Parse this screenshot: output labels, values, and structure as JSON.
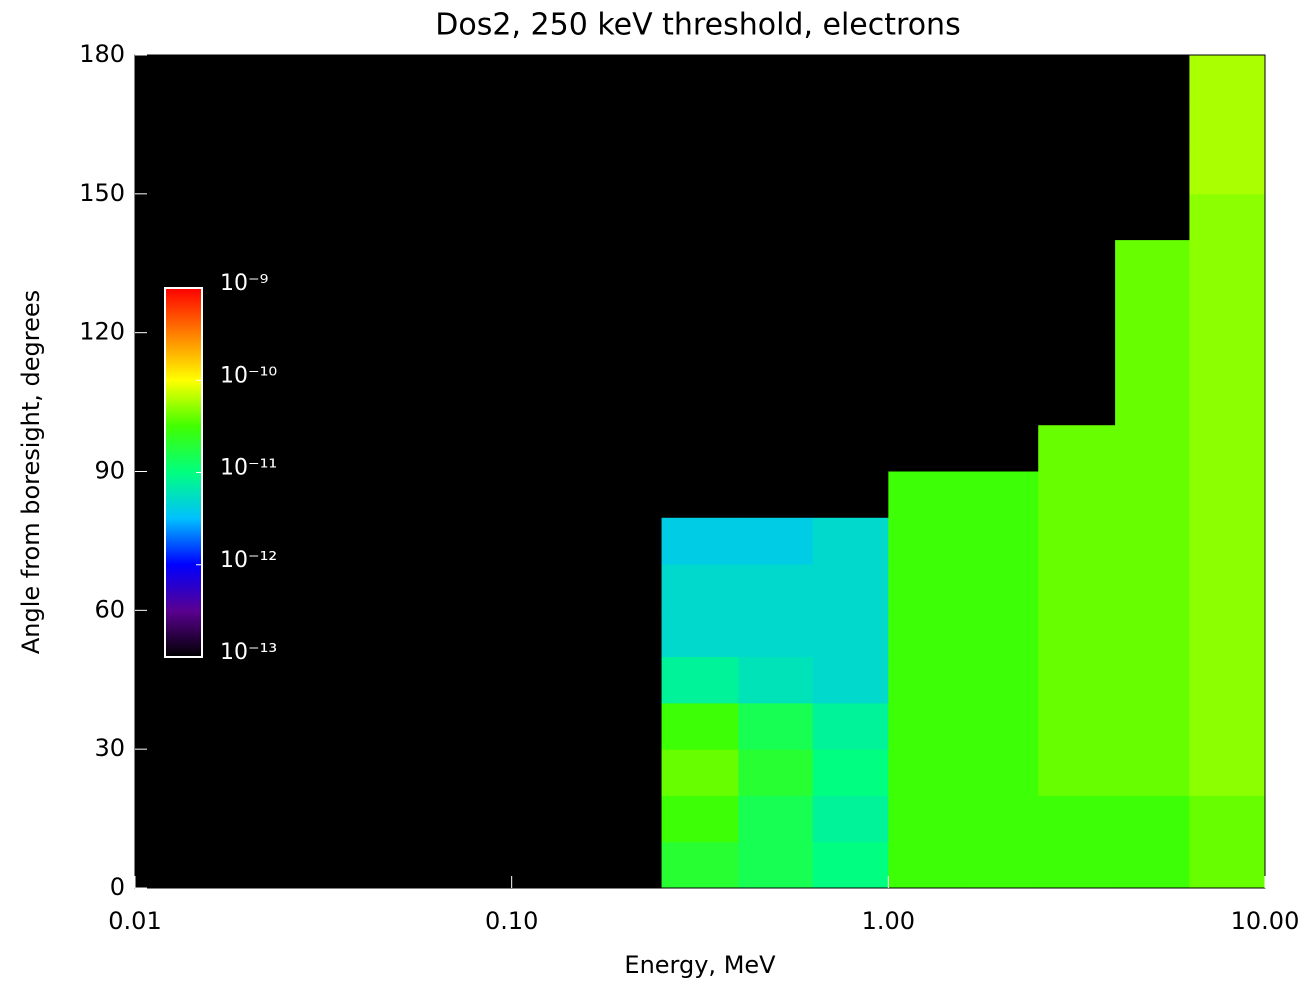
{
  "chart_data": {
    "type": "heatmap",
    "title": "Dos2, 250 keV threshold, electrons",
    "x_label": "Energy, MeV",
    "y_label": "Angle from boresight, degrees",
    "x_log": true,
    "xlim": [
      0.01,
      10
    ],
    "xticks": [
      0.01,
      {
        "value": 0.1,
        "label": "0.10"
      },
      {
        "value": 1,
        "label": "1.00"
      },
      {
        "value": 10,
        "label": "10.00"
      }
    ],
    "ylim": [
      0,
      180
    ],
    "yticks": [
      0,
      30,
      60,
      90,
      120,
      150,
      180
    ],
    "xbins": [
      0.25,
      0.4,
      0.63,
      1,
      1.6,
      2.5,
      4,
      6.3,
      10
    ],
    "ybins": [
      0,
      10,
      20,
      30,
      40,
      50,
      60,
      70,
      80,
      90,
      100,
      110,
      120,
      130,
      140,
      150,
      160,
      170,
      180
    ],
    "z": [
      [
        2e-11,
        1.5e-11,
        1e-11,
        3e-11,
        3e-11,
        3e-11,
        3e-11,
        4e-11
      ],
      [
        3e-11,
        1.5e-11,
        8e-12,
        3e-11,
        3e-11,
        3e-11,
        3e-11,
        4e-11
      ],
      [
        4e-11,
        2e-11,
        1e-11,
        3e-11,
        3e-11,
        4e-11,
        4e-11,
        5e-11
      ],
      [
        3e-11,
        1.5e-11,
        8e-12,
        3e-11,
        3e-11,
        4e-11,
        4e-11,
        5e-11
      ],
      [
        8e-12,
        6e-12,
        5e-12,
        3e-11,
        3e-11,
        4e-11,
        4e-11,
        5e-11
      ],
      [
        5e-12,
        5e-12,
        5e-12,
        3e-11,
        3e-11,
        4e-11,
        4e-11,
        5e-11
      ],
      [
        5e-12,
        5e-12,
        5e-12,
        3e-11,
        3e-11,
        4e-11,
        4e-11,
        5e-11
      ],
      [
        4e-12,
        4e-12,
        5e-12,
        3e-11,
        3e-11,
        4e-11,
        4e-11,
        5e-11
      ],
      [
        null,
        null,
        null,
        3e-11,
        3e-11,
        4e-11,
        4e-11,
        5e-11
      ],
      [
        null,
        null,
        null,
        null,
        null,
        4e-11,
        4e-11,
        5e-11
      ],
      [
        null,
        null,
        null,
        null,
        null,
        null,
        4e-11,
        5e-11
      ],
      [
        null,
        null,
        null,
        null,
        null,
        null,
        4e-11,
        5e-11
      ],
      [
        null,
        null,
        null,
        null,
        null,
        null,
        4e-11,
        5e-11
      ],
      [
        null,
        null,
        null,
        null,
        null,
        null,
        4e-11,
        5e-11
      ],
      [
        null,
        null,
        null,
        null,
        null,
        null,
        null,
        5e-11
      ],
      [
        null,
        null,
        null,
        null,
        null,
        null,
        null,
        6e-11
      ],
      [
        null,
        null,
        null,
        null,
        null,
        null,
        null,
        6e-11
      ],
      [
        null,
        null,
        null,
        null,
        null,
        null,
        null,
        6e-11
      ]
    ],
    "plot_background": "#000000",
    "colormap": [
      "#000000",
      "#5a0090",
      "#0000ff",
      "#00c0ff",
      "#00ff80",
      "#40ff00",
      "#ffff00",
      "#ff8000",
      "#ff0000"
    ],
    "colorbar_log": true,
    "colorbar_lim": [
      1e-13,
      1e-09
    ],
    "colorbar_ticks": [
      {
        "value": 1e-09,
        "label": "10⁻⁹"
      },
      {
        "value": 1e-10,
        "label": "10⁻¹⁰"
      },
      {
        "value": 1e-11,
        "label": "10⁻¹¹"
      },
      {
        "value": 1e-12,
        "label": "10⁻¹²"
      },
      {
        "value": 1e-13,
        "label": "10⁻¹³"
      }
    ]
  }
}
